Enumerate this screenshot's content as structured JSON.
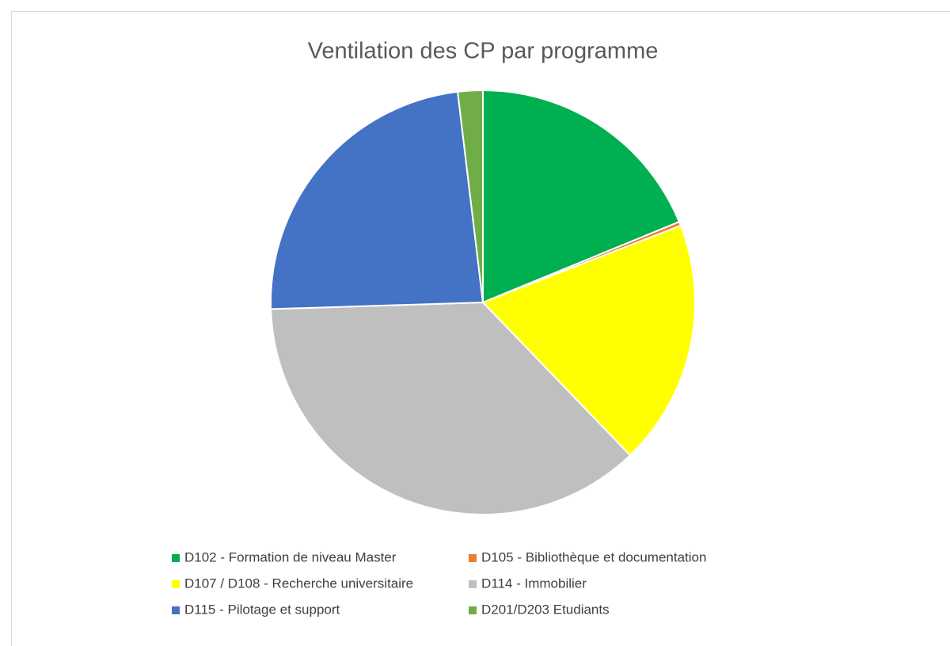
{
  "chart_data": {
    "type": "pie",
    "title": "Ventilation des CP par programme",
    "categories": [
      "D102 - Formation de niveau Master",
      "D105 - Bibliothèque et documentation",
      "D107 / D108 - Recherche universitaire",
      "D114 - Immobilier",
      "D115 - Pilotage et support",
      "D201/D203 Etudiants"
    ],
    "values": [
      18.8,
      0.3,
      18.7,
      36.7,
      23.6,
      1.9
    ],
    "colors": [
      "#00b050",
      "#ed7d31",
      "#ffff00",
      "#bfbfbf",
      "#4472c4",
      "#70ad47"
    ],
    "legend": "bottom"
  }
}
